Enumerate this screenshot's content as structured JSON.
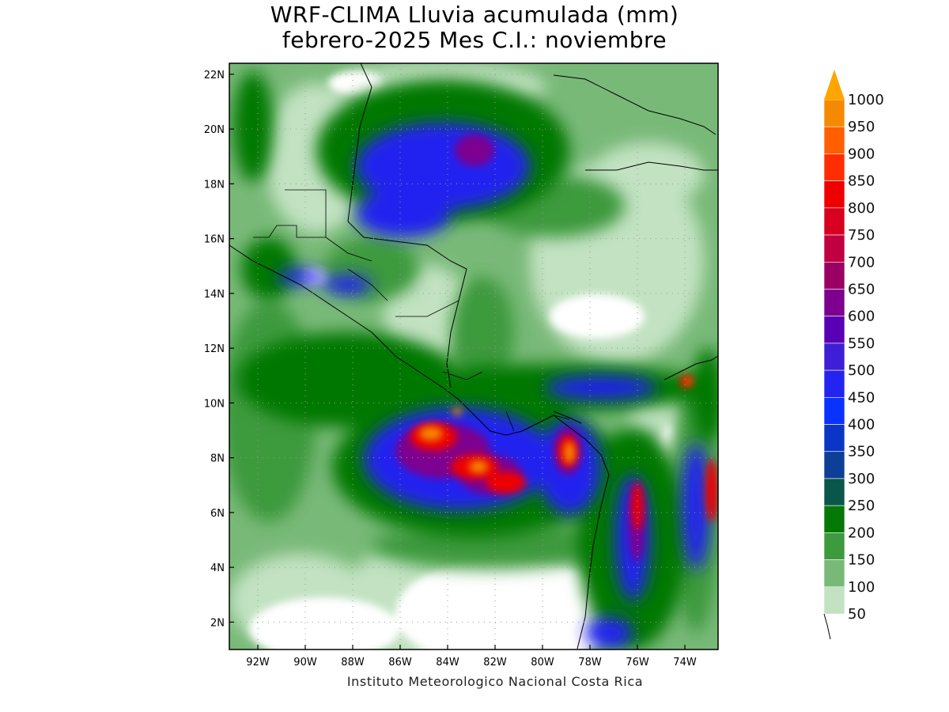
{
  "title": {
    "line1": "WRF-CLIMA Lluvia acumulada (mm)",
    "line2": "febrero-2025 Mes C.I.: noviembre"
  },
  "credit": "Instituto Meteorologico Nacional Costa Rica",
  "axes": {
    "lat_ticks": [
      "22N",
      "20N",
      "18N",
      "16N",
      "14N",
      "12N",
      "10N",
      "8N",
      "6N",
      "4N",
      "2N"
    ],
    "lon_ticks": [
      "92W",
      "90W",
      "88W",
      "86W",
      "84W",
      "82W",
      "80W",
      "78W",
      "76W",
      "74W"
    ],
    "lat_values": [
      22,
      20,
      18,
      16,
      14,
      12,
      10,
      8,
      6,
      4,
      2
    ],
    "lon_values": [
      -92,
      -90,
      -88,
      -86,
      -84,
      -82,
      -80,
      -78,
      -76,
      -74
    ],
    "lon_range": [
      -93.2,
      -72.6
    ],
    "lat_range": [
      1.0,
      22.4
    ],
    "grid": "dotted"
  },
  "colorbar": {
    "labels": [
      "1000",
      "950",
      "900",
      "850",
      "800",
      "750",
      "700",
      "650",
      "600",
      "550",
      "500",
      "450",
      "400",
      "350",
      "300",
      "250",
      "200",
      "150",
      "100",
      "50"
    ],
    "colors": [
      "#f58a00",
      "#ff5f00",
      "#ff2d00",
      "#ee0000",
      "#d70020",
      "#c00040",
      "#9a0064",
      "#7d0090",
      "#5a00b4",
      "#3f1ed8",
      "#2424f0",
      "#0a32ff",
      "#0a36c8",
      "#0d3f96",
      "#09574a",
      "#057805",
      "#3d9a3d",
      "#78b978",
      "#c2e2c2"
    ],
    "overflow_color": "#ffa500"
  },
  "legend_colors": {
    "no_rain": "#ffffff",
    "very_light": "#c2e2c2",
    "light": "#78b978",
    "moderate": "#3d9a3d",
    "green": "#057805",
    "blue": "#2424f0",
    "purple": "#7d0090",
    "red": "#ee0000",
    "orange": "#f58a00"
  }
}
